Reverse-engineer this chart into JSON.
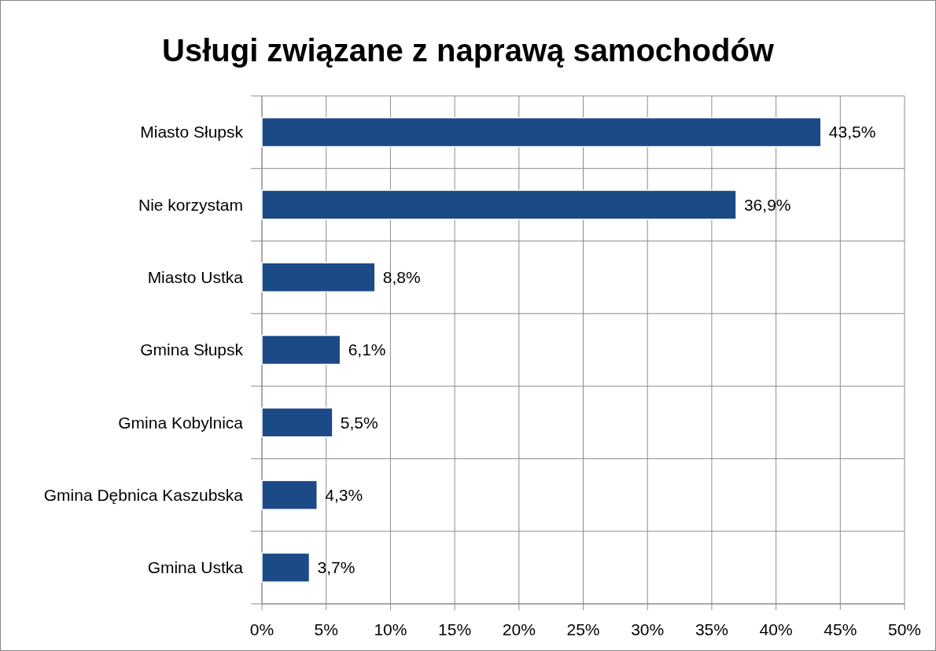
{
  "chart_data": {
    "type": "bar",
    "orientation": "horizontal",
    "title": "Usługi związane z naprawą samochodów",
    "categories": [
      "Miasto Słupsk",
      "Nie korzystam",
      "Miasto Ustka",
      "Gmina Słupsk",
      "Gmina Kobylnica",
      "Gmina Dębnica Kaszubska",
      "Gmina Ustka"
    ],
    "values": [
      43.5,
      36.9,
      8.8,
      6.1,
      5.5,
      4.3,
      3.7
    ],
    "value_labels": [
      "43,5%",
      "36,9%",
      "8,8%",
      "6,1%",
      "5,5%",
      "4,3%",
      "3,7%"
    ],
    "color": "#1c4a87",
    "xlim": [
      0,
      50
    ],
    "xticks": [
      {
        "value": 0,
        "label": "0%"
      },
      {
        "value": 5,
        "label": "5%"
      },
      {
        "value": 10,
        "label": "10%"
      },
      {
        "value": 15,
        "label": "15%"
      },
      {
        "value": 20,
        "label": "20%"
      },
      {
        "value": 25,
        "label": "25%"
      },
      {
        "value": 30,
        "label": "30%"
      },
      {
        "value": 35,
        "label": "35%"
      },
      {
        "value": 40,
        "label": "40%"
      },
      {
        "value": 45,
        "label": "45%"
      },
      {
        "value": 50,
        "label": "50%"
      }
    ],
    "grid": true
  }
}
